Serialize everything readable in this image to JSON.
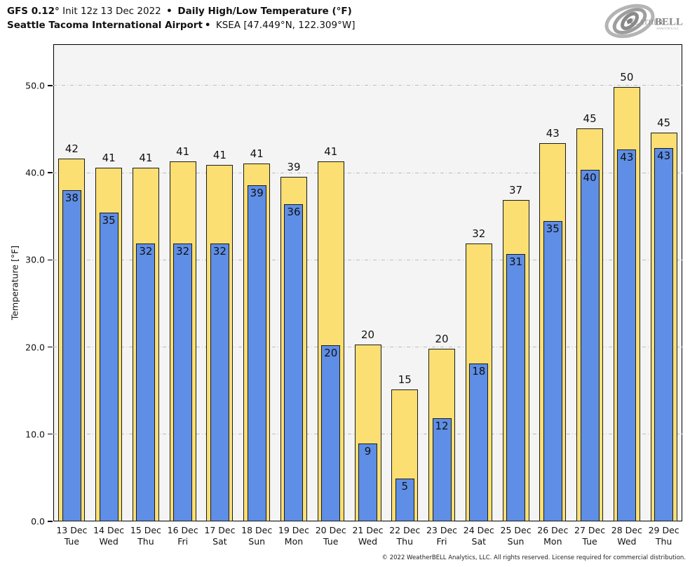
{
  "header": {
    "model": "GFS 0.12°",
    "init": " Init 12z 13 Dec 2022 ",
    "sep1": "•",
    "product": " Daily High/Low Temperature (°F)",
    "station": "Seattle Tacoma International Airport",
    "sep2": "•",
    "station_meta": " KSEA [47.449°N, 122.309°W]"
  },
  "logo": {
    "brand_part1": "Weather",
    "brand_part2": "BELL",
    "brand_sub": "Analytics LLC",
    "icon": "hurricane-swirl-icon"
  },
  "chart_data": {
    "type": "bar",
    "title": "Daily High/Low Temperature (°F)",
    "xlabel": "",
    "ylabel": "Temperature [°F]",
    "ylim": [
      0,
      54.75
    ],
    "yticks": [
      0,
      10,
      20,
      30,
      40,
      50
    ],
    "ytick_labels": [
      "0.0",
      "10.0",
      "20.0",
      "30.0",
      "40.0",
      "50.0"
    ],
    "grid": "horizontal dash-dot at 10,20,30,40,50",
    "legend": "none",
    "categories": [
      {
        "date": "13 Dec",
        "day": "Tue"
      },
      {
        "date": "14 Dec",
        "day": "Wed"
      },
      {
        "date": "15 Dec",
        "day": "Thu"
      },
      {
        "date": "16 Dec",
        "day": "Fri"
      },
      {
        "date": "17 Dec",
        "day": "Sat"
      },
      {
        "date": "18 Dec",
        "day": "Sun"
      },
      {
        "date": "19 Dec",
        "day": "Mon"
      },
      {
        "date": "20 Dec",
        "day": "Tue"
      },
      {
        "date": "21 Dec",
        "day": "Wed"
      },
      {
        "date": "22 Dec",
        "day": "Thu"
      },
      {
        "date": "23 Dec",
        "day": "Fri"
      },
      {
        "date": "24 Dec",
        "day": "Sat"
      },
      {
        "date": "25 Dec",
        "day": "Sun"
      },
      {
        "date": "26 Dec",
        "day": "Mon"
      },
      {
        "date": "27 Dec",
        "day": "Tue"
      },
      {
        "date": "28 Dec",
        "day": "Wed"
      },
      {
        "date": "29 Dec",
        "day": "Thu"
      }
    ],
    "series": [
      {
        "name": "Daily High",
        "color": "#fbdf73",
        "values": [
          41.6,
          40.6,
          40.6,
          41.3,
          40.9,
          41.1,
          39.5,
          41.3,
          20.3,
          15.1,
          19.8,
          31.9,
          36.9,
          43.4,
          45.1,
          49.8,
          44.6
        ],
        "labels": [
          42,
          41,
          41,
          41,
          41,
          41,
          39,
          41,
          20,
          15,
          20,
          32,
          37,
          43,
          45,
          50,
          45
        ]
      },
      {
        "name": "Daily Low",
        "color": "#5e8ee6",
        "values": [
          38.0,
          35.4,
          31.9,
          31.9,
          31.9,
          38.6,
          36.4,
          20.2,
          8.9,
          4.9,
          11.8,
          18.1,
          30.7,
          34.5,
          40.3,
          42.7,
          42.8
        ],
        "labels": [
          38,
          35,
          32,
          32,
          32,
          39,
          36,
          20,
          9,
          5,
          12,
          18,
          31,
          35,
          40,
          43,
          43
        ]
      }
    ]
  },
  "footer": {
    "copyright": "© 2022 WeatherBELL Analytics, LLC. All rights reserved. License required for commercial distribution."
  },
  "colors": {
    "high_bar": "#fbdf73",
    "low_bar": "#5e8ee6",
    "bar_border": "#1a1a1a",
    "plot_background": "#f4f4f4",
    "gridline": "#bdbdbd",
    "page_background": "#ffffff",
    "text": "#111111"
  }
}
